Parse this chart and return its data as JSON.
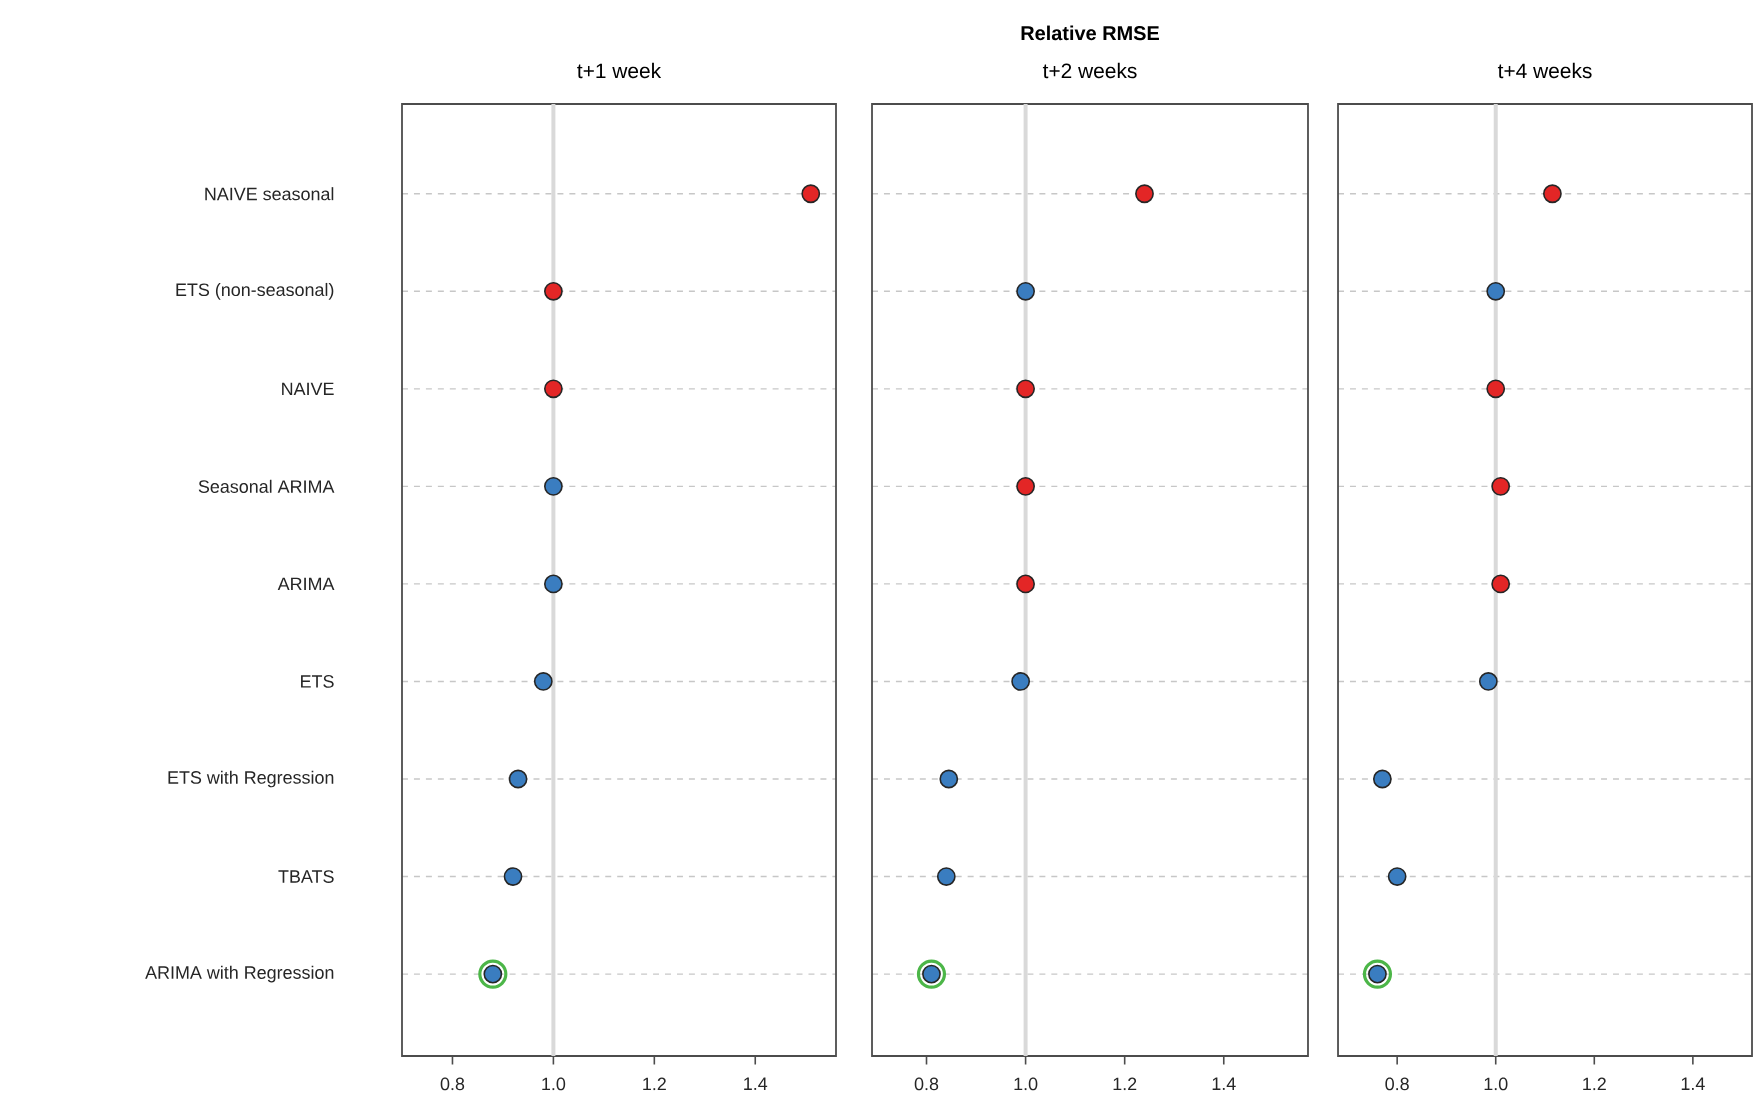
{
  "chart_data": [
    {
      "type": "scatter",
      "orientation": "horizontal",
      "title": "t+1 week",
      "categories": [
        "NAIVE seasonal",
        "ETS (non-seasonal)",
        "NAIVE",
        "Seasonal ARIMA",
        "ARIMA",
        "ETS",
        "ETS with Regression",
        "TBATS",
        "ARIMA with Regression"
      ],
      "series": [
        {
          "color": "#4cb648",
          "marker": "circle",
          "values": [
            null,
            null,
            null,
            null,
            null,
            null,
            null,
            null,
            0.88
          ]
        },
        {
          "color": "#e32626",
          "values": [
            1.51,
            1.0,
            1.0,
            null,
            null,
            null,
            null,
            null,
            null
          ]
        },
        {
          "color": "#3a7dc0",
          "values": [
            null,
            null,
            null,
            1.0,
            1.0,
            0.98,
            0.93,
            0.92,
            0.88
          ]
        }
      ],
      "xlim": [
        0.7,
        1.56
      ],
      "xticks": [
        {
          "value": 0.8,
          "label": "0.8"
        },
        {
          "value": 1.0,
          "label": "1.0"
        },
        {
          "value": 1.2,
          "label": "1.2"
        },
        {
          "value": 1.4,
          "label": "1.4"
        }
      ],
      "grid": "y",
      "ref_lines": [
        {
          "axis": "x",
          "value": 1.0,
          "color": "#d9d9d9"
        }
      ]
    },
    {
      "type": "scatter",
      "orientation": "horizontal",
      "title": "Relative RMSE",
      "subtitle": "t+2 weeks",
      "categories": [
        null,
        null,
        null,
        null,
        null,
        null,
        null,
        null,
        null
      ],
      "series": [
        {
          "color": "#4cb648",
          "marker": "circle",
          "values": [
            null,
            null,
            null,
            null,
            null,
            null,
            null,
            null,
            0.81
          ]
        },
        {
          "color": "#e32626",
          "values": [
            1.24,
            null,
            1.0,
            1.0,
            1.0,
            null,
            null,
            null,
            null
          ]
        },
        {
          "color": "#3a7dc0",
          "values": [
            null,
            1.0,
            null,
            null,
            null,
            0.99,
            0.845,
            0.84,
            0.81
          ]
        }
      ],
      "xlim": [
        0.69,
        1.57
      ],
      "xticks": [
        {
          "value": 0.8,
          "label": "0.8"
        },
        {
          "value": 1.0,
          "label": "1.0"
        },
        {
          "value": 1.2,
          "label": "1.2"
        },
        {
          "value": 1.4,
          "label": "1.4"
        }
      ],
      "grid": "y",
      "tick_labels": "x",
      "ref_lines": [
        {
          "axis": "x",
          "value": 1.0,
          "color": "#d9d9d9"
        }
      ]
    },
    {
      "type": "scatter",
      "orientation": "horizontal",
      "title": "t+4 weeks",
      "categories": [
        null,
        null,
        null,
        null,
        null,
        null,
        null,
        null,
        null
      ],
      "series": [
        {
          "color": "#4cb648",
          "marker": "circle",
          "values": [
            null,
            null,
            null,
            null,
            null,
            null,
            null,
            null,
            0.76
          ]
        },
        {
          "color": "#e32626",
          "values": [
            1.115,
            null,
            1.0,
            1.01,
            1.01,
            null,
            null,
            null,
            null
          ]
        },
        {
          "color": "#3a7dc0",
          "values": [
            null,
            1.0,
            null,
            null,
            null,
            0.985,
            0.77,
            0.8,
            0.76
          ]
        }
      ],
      "xlim": [
        0.68,
        1.52
      ],
      "xticks": [
        {
          "value": 0.8,
          "label": "0.8"
        },
        {
          "value": 1.0,
          "label": "1.0"
        },
        {
          "value": 1.2,
          "label": "1.2"
        },
        {
          "value": 1.4,
          "label": "1.4"
        }
      ],
      "grid": "y",
      "tick_labels": "x",
      "ref_lines": [
        {
          "axis": "x",
          "value": 1.0,
          "color": "#d9d9d9"
        }
      ]
    }
  ]
}
